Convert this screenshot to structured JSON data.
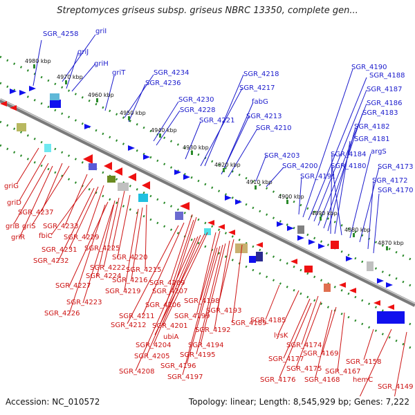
{
  "title": "Streptomyces griseus subsp. griseus NBRC 13350, complete gen...",
  "footer": {
    "accession": "Accession: NC_010572",
    "summary": "Topology: linear; Length: 8,545,929 bp; Genes: 7,222"
  },
  "colors": {
    "top_label": "#1a1acc",
    "bottom_label": "#cc1111",
    "backbone": "#8a8a8a",
    "dots": "#2a8a2a"
  },
  "ticks": [
    "4980 kbp",
    "4970 kbp",
    "4960 kbp",
    "4950 kbp",
    "4940 kbp",
    "4930 kbp",
    "4920 kbp",
    "4910 kbp",
    "4900 kbp",
    "4890 kbp",
    "4880 kbp",
    "4870 kbp"
  ],
  "top_labels": [
    "SGR_4258",
    "griI",
    "griJ",
    "griH",
    "griT",
    "SGR_4234",
    "SGR_4236",
    "SGR_4230",
    "SGR_4228",
    "SGR_4221",
    "SGR_4218",
    "SGR_4217",
    "fabG",
    "SGR_4213",
    "SGR_4210",
    "SGR_4203",
    "SGR_4200",
    "SGR_4191",
    "SGR_4190",
    "SGR_4188",
    "SGR_4187",
    "SGR_4186",
    "SGR_4183",
    "SGR_4182",
    "SGR_4181",
    "SGR_4184",
    "SGR_4180",
    "argS",
    "SGR_4173",
    "SGR_4172",
    "SGR_4170"
  ],
  "bottom_labels": [
    "griG",
    "griD",
    "SGR_4237",
    "griB",
    "griS",
    "griR",
    "SGR_4233",
    "fbiC",
    "SGR_4229",
    "SGR_4231",
    "SGR_4232",
    "SGR_4225",
    "SGR_4220",
    "SGR_4222",
    "SGR_4224",
    "SGR_4227",
    "SGR_4223",
    "SGR_4226",
    "SGR_4215",
    "SGR_4216",
    "SGR_4219",
    "SGR_4209",
    "SGR_4207",
    "SGR_4206",
    "SGR_4211",
    "SGR_4212",
    "SGR_4198",
    "SGR_4199",
    "SGR_4201",
    "ubiA",
    "SGR_4193",
    "SGR_4192",
    "SGR_4189",
    "SGR_4204",
    "SGR_4205",
    "SGR_4194",
    "SGR_4195",
    "SGR_4196",
    "SGR_4197",
    "SGR_4208",
    "SGR_4185",
    "lysK",
    "SGR_4174",
    "SGR_4177",
    "SGR_4175",
    "SGR_4176",
    "SGR_4169",
    "SGR_4167",
    "SGR_4168",
    "SGR_4158",
    "hemC",
    "SGR_4149"
  ]
}
